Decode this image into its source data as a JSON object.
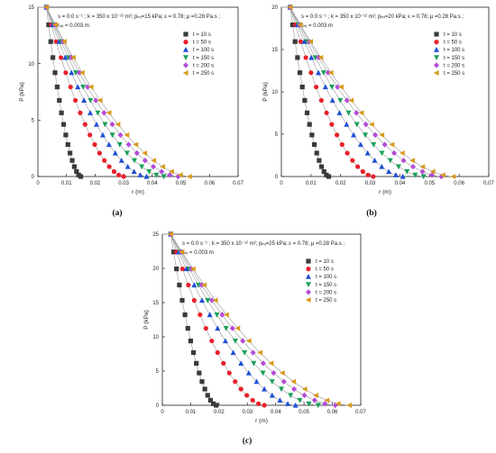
{
  "figure": {
    "captions": [
      "(a)",
      "(b)",
      "(c)"
    ]
  },
  "style": {
    "series_colors": [
      "#3a3a3a",
      "#e8202a",
      "#1f4fd6",
      "#1aa05a",
      "#b44bd8",
      "#d89a1a"
    ],
    "series_markers": [
      "square",
      "circle",
      "triangle-up",
      "triangle-down",
      "diamond",
      "triangle-left"
    ],
    "fit_line_color": "#9a9a9a"
  },
  "chart_data": [
    {
      "type": "scatter",
      "caption": "(a)",
      "param_line1": "s = 0.0 s⁻¹ ; k = 350 x 10⁻¹² m²; pᵢₙⱼ=15 kPa; ε = 0.78; μ =0.28 Pa.s ;",
      "param_line2": "rᵢₙⱼ = 0.003 m",
      "xlabel": "r (m)",
      "ylabel": "P (kPa)",
      "xlim": [
        0,
        0.07
      ],
      "ylim": [
        0,
        15
      ],
      "xticks": [
        "0",
        "0.01",
        "0.02",
        "0.03",
        "0.04",
        "0.05",
        "0.06",
        "0.07"
      ],
      "yticks": [
        "0",
        "5",
        "10",
        "15"
      ],
      "legend_position": "top-right",
      "series": [
        {
          "name": "t = 10 s",
          "front": 0.015
        },
        {
          "name": "t = 50 s",
          "front": 0.03
        },
        {
          "name": "t = 100 s",
          "front": 0.038
        },
        {
          "name": "t = 150 s",
          "front": 0.044
        },
        {
          "name": "t = 200 s",
          "front": 0.049
        },
        {
          "name": "t = 250 s",
          "front": 0.053
        }
      ]
    },
    {
      "type": "scatter",
      "caption": "(b)",
      "param_line1": "s = 0.0 s⁻¹ ; k = 350 x 10⁻¹² m²; pᵢₙⱼ=20 kPa; ε = 0.78; μ =0.28 Pa.s ;",
      "param_line2": "rᵢₙⱼ = 0.003 m",
      "xlabel": "r (m)",
      "ylabel": "P (kPa)",
      "xlim": [
        0,
        0.07
      ],
      "ylim": [
        0,
        20
      ],
      "xticks": [
        "0",
        "0.01",
        "0.02",
        "0.03",
        "0.04",
        "0.05",
        "0.06",
        "0.07"
      ],
      "yticks": [
        "0",
        "5",
        "10",
        "15",
        "20"
      ],
      "legend_position": "top-right",
      "series": [
        {
          "name": "t = 10 s",
          "front": 0.016
        },
        {
          "name": "t = 50 s",
          "front": 0.031
        },
        {
          "name": "t = 100 s",
          "front": 0.041
        },
        {
          "name": "t = 150 s",
          "front": 0.048
        },
        {
          "name": "t = 200 s",
          "front": 0.054
        },
        {
          "name": "t = 250 s",
          "front": 0.058
        }
      ]
    },
    {
      "type": "scatter",
      "caption": "(c)",
      "param_line1": "s = 0.0 s⁻¹ ; k = 350 x 10⁻¹² m²; pᵢₙⱼ=25 kPa; ε = 0.78; μ =0.28 Pa.s ;",
      "param_line2": "rᵢₙⱼ = 0.003 m",
      "xlabel": "r (m)",
      "ylabel": "P (kPa)",
      "xlim": [
        0,
        0.07
      ],
      "ylim": [
        0,
        25
      ],
      "xticks": [
        "0",
        "0.01",
        "0.02",
        "0.03",
        "0.04",
        "0.05",
        "0.06",
        "0.07"
      ],
      "yticks": [
        "0",
        "5",
        "10",
        "15",
        "20",
        "25"
      ],
      "legend_position": "top-right",
      "series": [
        {
          "name": "t = 10 s",
          "front": 0.019
        },
        {
          "name": "t = 50 s",
          "front": 0.036
        },
        {
          "name": "t = 100 s",
          "front": 0.047
        },
        {
          "name": "t = 150 s",
          "front": 0.055
        },
        {
          "name": "t = 200 s",
          "front": 0.061
        },
        {
          "name": "t = 250 s",
          "front": 0.066
        }
      ]
    }
  ]
}
